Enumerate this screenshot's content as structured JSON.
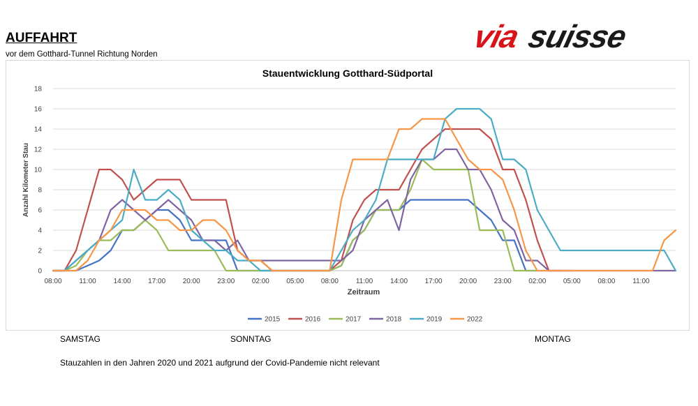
{
  "header": {
    "title": "AUFFAHRT",
    "subtitle": "vor dem Gotthard-Tunnel Richtung Norden",
    "logo_text": "viasuisse",
    "logo_colors": {
      "via": "#d7141a",
      "suisse": "#1a1a1a"
    }
  },
  "chart_data": {
    "type": "line",
    "title": "Stauentwicklung Gotthard-Südportal",
    "xlabel": "Zeitraum",
    "ylabel": "Anzahl Kilometer Stau",
    "ylim": [
      0,
      18
    ],
    "yticks": [
      0,
      2,
      4,
      6,
      8,
      10,
      12,
      14,
      16,
      18
    ],
    "xlim_hours": [
      8,
      62
    ],
    "xticks": [
      "08:00",
      "11:00",
      "14:00",
      "17:00",
      "20:00",
      "23:00",
      "02:00",
      "05:00",
      "08:00",
      "11:00",
      "14:00",
      "17:00",
      "20:00",
      "23:00",
      "02:00",
      "05:00",
      "08:00",
      "11:00"
    ],
    "grid": "horizontal",
    "legend_position": "bottom",
    "series": [
      {
        "name": "2015",
        "color": "#4472c4",
        "x": [
          8,
          9,
          10,
          11,
          12,
          13,
          14,
          15,
          16,
          17,
          18,
          19,
          20,
          21,
          22,
          23,
          24,
          32,
          33,
          34,
          35,
          36,
          37,
          38,
          39,
          40,
          41,
          42,
          43,
          44,
          45,
          46,
          47,
          48,
          49,
          50,
          51,
          52
        ],
        "y": [
          0,
          0,
          0,
          0.5,
          1,
          2,
          4,
          4,
          5,
          6,
          6,
          5,
          3,
          3,
          3,
          3,
          0,
          0,
          0.5,
          3,
          4,
          6,
          6,
          6,
          7,
          7,
          7,
          7,
          7,
          7,
          6,
          5,
          3,
          3,
          0,
          0,
          0,
          0
        ]
      },
      {
        "name": "2016",
        "color": "#c0504d",
        "x": [
          8,
          9,
          10,
          11,
          12,
          13,
          14,
          15,
          16,
          17,
          18,
          19,
          20,
          21,
          22,
          23,
          24,
          25,
          26,
          27,
          32,
          33,
          34,
          35,
          36,
          37,
          38,
          39,
          40,
          41,
          42,
          43,
          44,
          45,
          46,
          47,
          48,
          49,
          50,
          51,
          52,
          53
        ],
        "y": [
          0,
          0,
          2,
          6,
          10,
          10,
          9,
          7,
          8,
          9,
          9,
          9,
          7,
          7,
          7,
          7,
          2,
          1,
          1,
          0,
          0,
          1,
          5,
          7,
          8,
          8,
          8,
          10,
          12,
          13,
          14,
          14,
          14,
          14,
          13,
          10,
          10,
          7,
          3,
          0,
          0,
          0
        ]
      },
      {
        "name": "2017",
        "color": "#9bbb59",
        "x": [
          8,
          9,
          10,
          11,
          12,
          13,
          14,
          15,
          16,
          17,
          18,
          19,
          20,
          21,
          22,
          23,
          24,
          25,
          32,
          33,
          34,
          35,
          36,
          37,
          38,
          39,
          40,
          41,
          42,
          43,
          44,
          45,
          46,
          47,
          48,
          49,
          50
        ],
        "y": [
          0,
          0,
          0.5,
          2,
          3,
          3,
          4,
          4,
          5,
          4,
          2,
          2,
          2,
          2,
          2,
          0,
          0,
          0,
          0,
          0.5,
          3,
          4,
          6,
          6,
          6,
          8,
          11,
          10,
          10,
          10,
          10,
          4,
          4,
          4,
          0,
          0,
          0
        ]
      },
      {
        "name": "2018",
        "color": "#8064a2",
        "x": [
          8,
          9,
          10,
          11,
          12,
          13,
          14,
          15,
          16,
          17,
          18,
          19,
          20,
          21,
          22,
          23,
          24,
          25,
          32,
          33,
          34,
          35,
          36,
          37,
          38,
          39,
          40,
          41,
          42,
          43,
          44,
          45,
          46,
          47,
          48,
          49,
          50,
          51,
          62
        ],
        "y": [
          0,
          0,
          1,
          2,
          3,
          6,
          7,
          6,
          5,
          6,
          7,
          6,
          5,
          3,
          3,
          2,
          3,
          1,
          1,
          1,
          2,
          5,
          6,
          7,
          4,
          9,
          11,
          11,
          12,
          12,
          10,
          10,
          8,
          5,
          4,
          1,
          1,
          0,
          0
        ]
      },
      {
        "name": "2019",
        "color": "#4bacc6",
        "x": [
          8,
          9,
          10,
          11,
          12,
          13,
          14,
          15,
          16,
          17,
          18,
          19,
          20,
          21,
          22,
          23,
          24,
          25,
          26,
          32,
          33,
          34,
          35,
          36,
          37,
          38,
          39,
          40,
          41,
          42,
          43,
          44,
          45,
          46,
          47,
          48,
          49,
          50,
          51,
          52,
          53,
          54,
          55,
          56,
          57,
          58,
          59,
          60,
          61,
          62
        ],
        "y": [
          0,
          0,
          1,
          2,
          3,
          4,
          5,
          10,
          7,
          7,
          8,
          7,
          4,
          3,
          2,
          2,
          1,
          1,
          0,
          0,
          2,
          4,
          5,
          7,
          11,
          11,
          11,
          11,
          11,
          15,
          16,
          16,
          16,
          15,
          11,
          11,
          10,
          6,
          4,
          2,
          2,
          2,
          2,
          2,
          2,
          2,
          2,
          2,
          2,
          0
        ]
      },
      {
        "name": "2022",
        "color": "#f79646",
        "x": [
          8,
          9,
          10,
          11,
          12,
          13,
          14,
          15,
          16,
          17,
          18,
          19,
          20,
          21,
          22,
          23,
          24,
          25,
          26,
          27,
          32,
          33,
          34,
          35,
          36,
          37,
          38,
          39,
          40,
          41,
          42,
          43,
          44,
          45,
          46,
          47,
          48,
          49,
          50,
          51,
          60,
          61,
          62
        ],
        "y": [
          0,
          0,
          0,
          1,
          3,
          4,
          6,
          6,
          6,
          5,
          5,
          4,
          4,
          5,
          5,
          4,
          2,
          1,
          1,
          0,
          0,
          7,
          11,
          11,
          11,
          11,
          14,
          14,
          15,
          15,
          15,
          13,
          11,
          10,
          10,
          9,
          6,
          2,
          0,
          0,
          0,
          3,
          4
        ]
      }
    ]
  },
  "day_labels": [
    "SAMSTAG",
    "SONNTAG",
    "MONTAG"
  ],
  "note": "Stauzahlen in den Jahren 2020 und 2021 aufgrund der Covid-Pandemie nicht relevant"
}
